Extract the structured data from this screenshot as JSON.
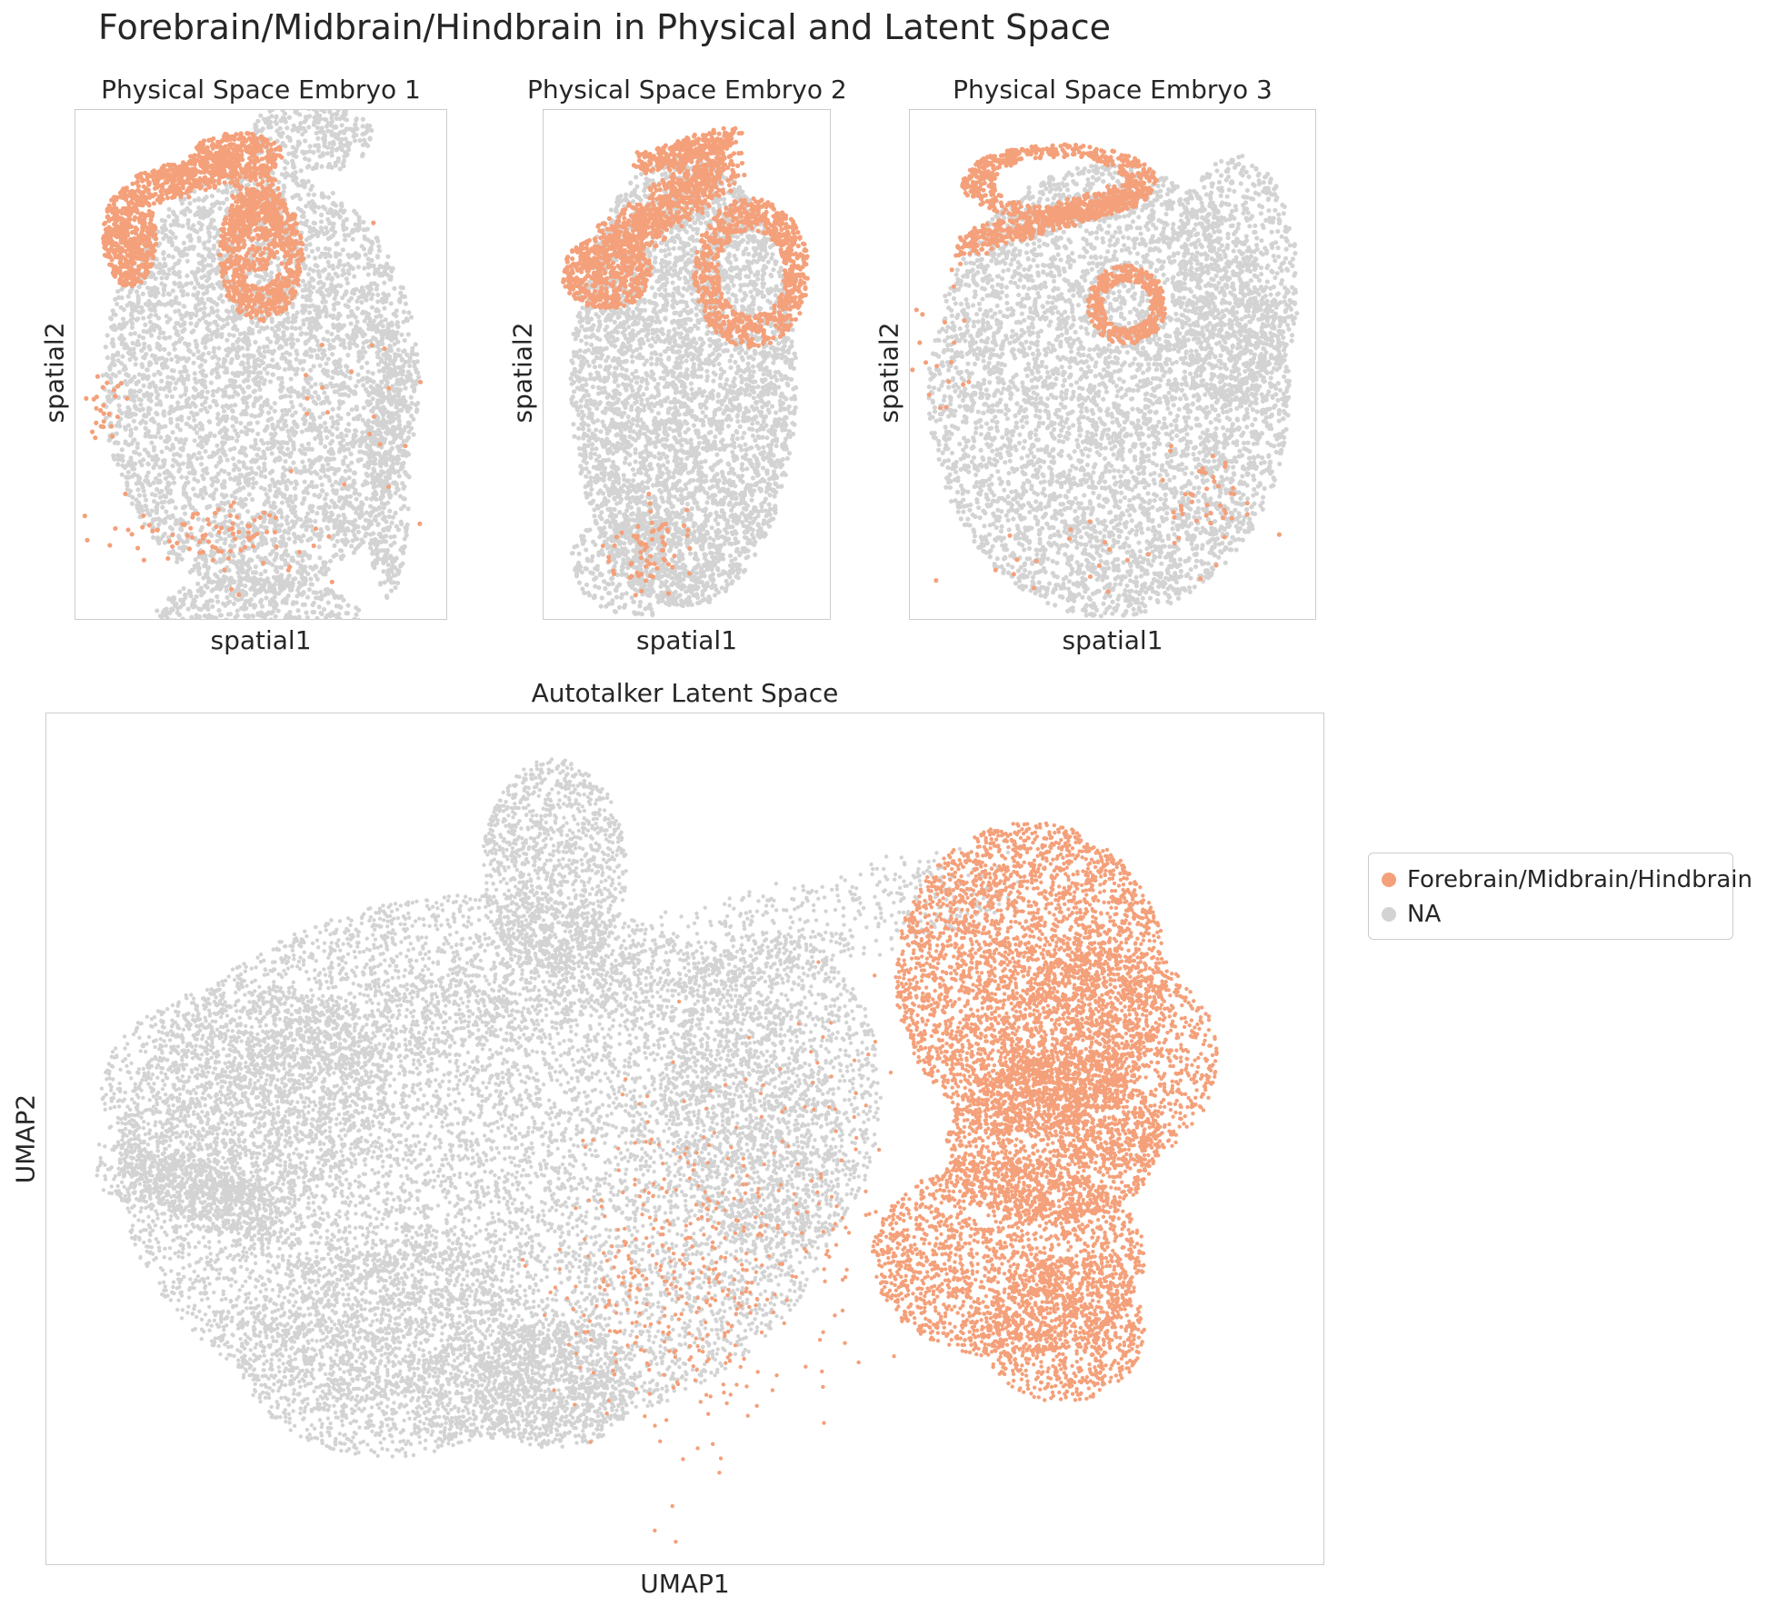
{
  "figure": {
    "suptitle": "Forebrain/Midbrain/Hindbrain in Physical and Latent Space"
  },
  "colors": {
    "highlight": "#f4a07a",
    "background_cells": "#d3d3d3",
    "axes_edge": "#cccccc"
  },
  "panels": [
    {
      "title": "Physical Space Embryo 1",
      "xlabel": "spatial1",
      "ylabel": "spatial2"
    },
    {
      "title": "Physical Space Embryo 2",
      "xlabel": "spatial1",
      "ylabel": "spatial2"
    },
    {
      "title": "Physical Space Embryo 3",
      "xlabel": "spatial1",
      "ylabel": "spatial2"
    },
    {
      "title": "Autotalker Latent Space",
      "xlabel": "UMAP1",
      "ylabel": "UMAP2"
    }
  ],
  "legend": {
    "items": [
      {
        "label": "Forebrain/Midbrain/Hindbrain",
        "color": "#f4a07a"
      },
      {
        "label": "NA",
        "color": "#d3d3d3"
      }
    ]
  },
  "chart_data": [
    {
      "type": "scatter",
      "title": "Physical Space Embryo 1",
      "xlabel": "spatial1",
      "ylabel": "spatial2",
      "categories": [
        "Forebrain/Midbrain/Hindbrain",
        "NA"
      ],
      "ticks": "none",
      "grid": false
    },
    {
      "type": "scatter",
      "title": "Physical Space Embryo 2",
      "xlabel": "spatial1",
      "ylabel": "spatial2",
      "categories": [
        "Forebrain/Midbrain/Hindbrain",
        "NA"
      ],
      "ticks": "none",
      "grid": false
    },
    {
      "type": "scatter",
      "title": "Physical Space Embryo 3",
      "xlabel": "spatial1",
      "ylabel": "spatial2",
      "categories": [
        "Forebrain/Midbrain/Hindbrain",
        "NA"
      ],
      "ticks": "none",
      "grid": false
    },
    {
      "type": "scatter",
      "title": "Autotalker Latent Space",
      "xlabel": "UMAP1",
      "ylabel": "UMAP2",
      "categories": [
        "Forebrain/Midbrain/Hindbrain",
        "NA"
      ],
      "ticks": "none",
      "grid": false,
      "legend_position": "right"
    }
  ]
}
